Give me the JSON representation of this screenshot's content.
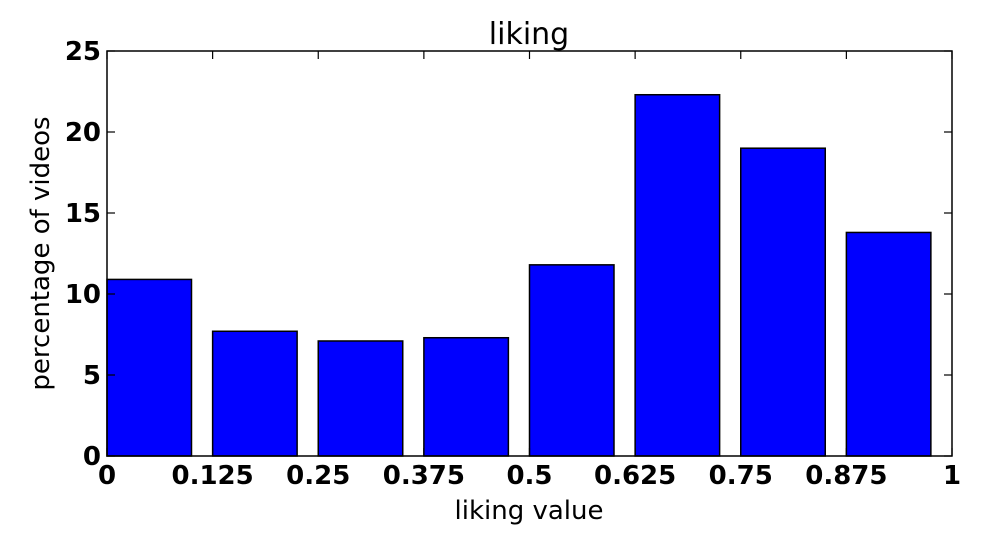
{
  "chart_data": {
    "type": "bar",
    "title": "liking",
    "xlabel": "liking value",
    "ylabel": "percentage of videos",
    "xlim": [
      0,
      1
    ],
    "ylim": [
      0,
      25
    ],
    "x_ticks": [
      "0",
      "0.125",
      "0.25",
      "0.375",
      "0.5",
      "0.625",
      "0.75",
      "0.875",
      "1"
    ],
    "y_ticks": [
      "0",
      "5",
      "10",
      "15",
      "20",
      "25"
    ],
    "bin_starts": [
      0,
      0.125,
      0.25,
      0.375,
      0.5,
      0.625,
      0.75,
      0.875
    ],
    "values": [
      10.9,
      7.7,
      7.1,
      7.3,
      11.8,
      22.3,
      19.0,
      13.8
    ],
    "bar_color": "#0000ff",
    "edge_color": "#000000",
    "grid": false
  }
}
